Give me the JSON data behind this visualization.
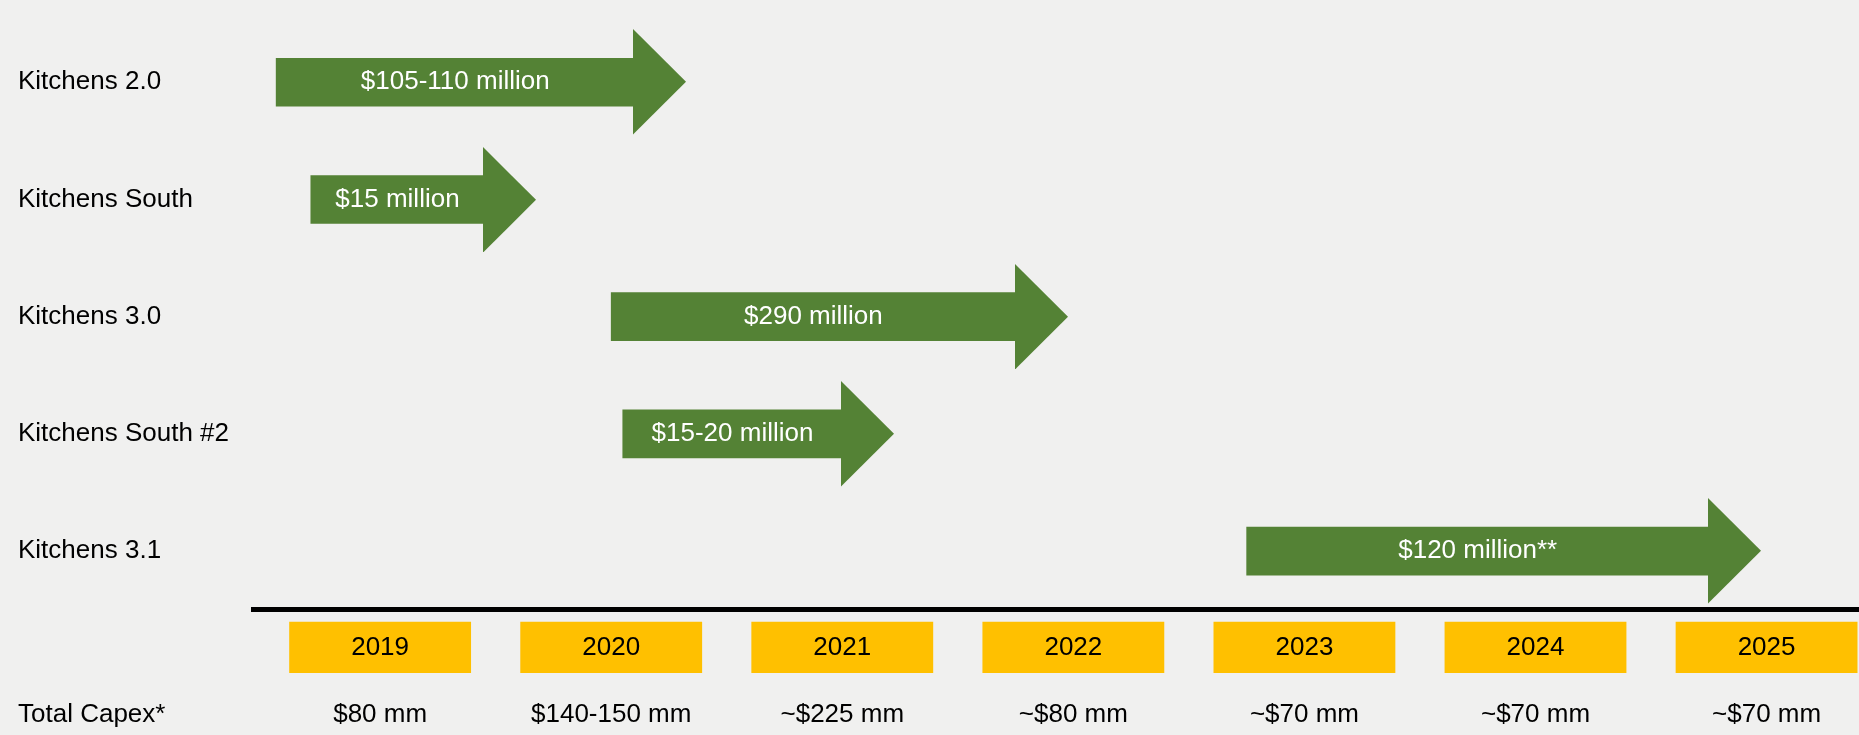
{
  "chart_data": {
    "type": "bar",
    "orientation": "horizontal",
    "categories": [
      "Kitchens 2.0",
      "Kitchens South",
      "Kitchens 3.0",
      "Kitchens South #2",
      "Kitchens 3.1"
    ],
    "base": [
      2018.55,
      2018.7,
      2020.0,
      2020.05,
      2022.75
    ],
    "values": [
      1.55,
      0.75,
      1.75,
      0.95,
      2.0
    ],
    "color": "#548235",
    "xlim": [
      2018.45,
      2025.4
    ],
    "xticks": [
      {
        "value": 2019,
        "label": "2019"
      },
      {
        "value": 2020,
        "label": "2020"
      },
      {
        "value": 2021,
        "label": "2021"
      },
      {
        "value": 2022,
        "label": "2022"
      },
      {
        "value": 2023,
        "label": "2023"
      },
      {
        "value": 2024,
        "label": "2024"
      },
      {
        "value": 2025,
        "label": "2025"
      }
    ],
    "annotations": [
      "$105-110 million",
      "$15 million",
      "$290 million",
      "$15-20 million",
      "$120 million**",
      "Total Capex*",
      "$80 mm",
      "$140-150 mm",
      "~$225 mm",
      "~$80 mm",
      "~$70 mm",
      "~$70 mm",
      "~$70 mm"
    ]
  }
}
